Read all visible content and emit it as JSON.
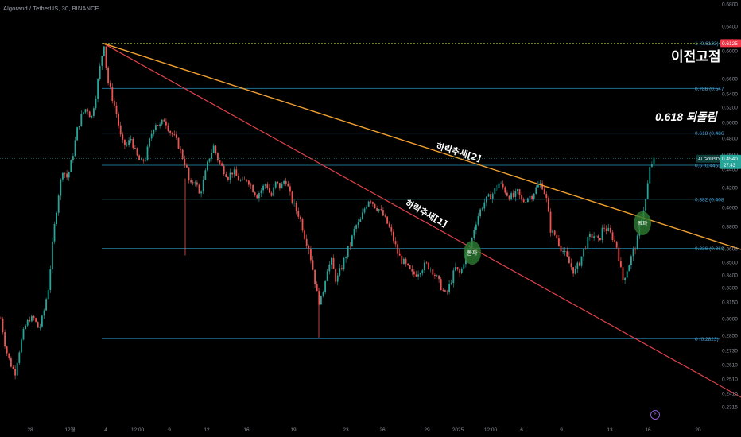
{
  "header": {
    "title": "Algorand / TetherUS, 30, BINANCE"
  },
  "annotations": {
    "previous_high": "이전고점",
    "retracement": "0.618 되돌림",
    "downtrend_1": "하락추세[1]",
    "downtrend_2": "하락추세[2]",
    "breakout": "돌파"
  },
  "price_tags": {
    "high_value": "0.6125",
    "symbol": "ALGOUSDT",
    "current_value": "0.4540",
    "countdown": "27:43"
  },
  "fib_levels": [
    {
      "ratio": 1,
      "label": "1 (0.6123)",
      "price": 0.6123
    },
    {
      "ratio": 0.786,
      "label": "0.786 (0.547",
      "price": 0.547
    },
    {
      "ratio": 0.618,
      "label": "0.618 (0.486",
      "price": 0.4864
    },
    {
      "ratio": 0.5,
      "label": "0.5 (0.4453)",
      "price": 0.4453
    },
    {
      "ratio": 0.382,
      "label": "0.382 (0.408",
      "price": 0.4082
    },
    {
      "ratio": 0.236,
      "label": "0.236 (0.360",
      "price": 0.3603
    },
    {
      "ratio": 0,
      "label": "0 (0.2823)",
      "price": 0.2823
    }
  ],
  "colors": {
    "background": "#000000",
    "up": "#26a69a",
    "down": "#ef5350",
    "fib": "#1e6f8f",
    "trend1": "#e0434a",
    "trend2": "#f0a030",
    "high_line": "#7fae3f",
    "breakout_circle": "#2e7d32"
  },
  "chart_data": {
    "type": "candlestick",
    "y_ticks": [
      "0.6800",
      "0.6400",
      "0.6000",
      "0.5600",
      "0.5400",
      "0.5200",
      "0.5000",
      "0.4800",
      "0.4600",
      "0.4400",
      "0.4200",
      "0.4000",
      "0.3800",
      "0.3600",
      "0.3500",
      "0.3400",
      "0.3300",
      "0.3150",
      "0.3000",
      "0.2850",
      "0.2730",
      "0.2610",
      "0.2510",
      "0.2410",
      "0.2315"
    ],
    "x_ticks": [
      "28",
      "12월",
      "4",
      "12:00",
      "9",
      "12",
      "16",
      "19",
      "23",
      "26",
      "29",
      "2025",
      "12:00",
      "6",
      "9",
      "13",
      "16",
      "20"
    ],
    "ylim": [
      0.2315,
      0.68
    ],
    "path": [
      [
        0,
        0.3
      ],
      [
        6,
        0.275
      ],
      [
        12,
        0.262
      ],
      [
        18,
        0.255
      ],
      [
        24,
        0.275
      ],
      [
        30,
        0.292
      ],
      [
        36,
        0.3
      ],
      [
        42,
        0.3
      ],
      [
        48,
        0.29
      ],
      [
        54,
        0.305
      ],
      [
        60,
        0.33
      ],
      [
        66,
        0.37
      ],
      [
        72,
        0.41
      ],
      [
        78,
        0.44
      ],
      [
        84,
        0.43
      ],
      [
        90,
        0.455
      ],
      [
        96,
        0.49
      ],
      [
        102,
        0.51
      ],
      [
        108,
        0.52
      ],
      [
        114,
        0.505
      ],
      [
        120,
        0.54
      ],
      [
        126,
        0.585
      ],
      [
        130,
        0.612
      ],
      [
        134,
        0.56
      ],
      [
        140,
        0.535
      ],
      [
        146,
        0.51
      ],
      [
        152,
        0.475
      ],
      [
        158,
        0.47
      ],
      [
        164,
        0.48
      ],
      [
        170,
        0.46
      ],
      [
        176,
        0.448
      ],
      [
        182,
        0.455
      ],
      [
        188,
        0.48
      ],
      [
        194,
        0.5
      ],
      [
        200,
        0.495
      ],
      [
        206,
        0.505
      ],
      [
        212,
        0.49
      ],
      [
        218,
        0.482
      ],
      [
        224,
        0.47
      ],
      [
        230,
        0.452
      ],
      [
        234,
        0.44
      ],
      [
        238,
        0.42
      ],
      [
        244,
        0.43
      ],
      [
        250,
        0.412
      ],
      [
        256,
        0.43
      ],
      [
        262,
        0.455
      ],
      [
        268,
        0.47
      ],
      [
        274,
        0.45
      ],
      [
        280,
        0.44
      ],
      [
        286,
        0.432
      ],
      [
        292,
        0.438
      ],
      [
        298,
        0.43
      ],
      [
        304,
        0.425
      ],
      [
        310,
        0.43
      ],
      [
        316,
        0.42
      ],
      [
        322,
        0.412
      ],
      [
        328,
        0.418
      ],
      [
        334,
        0.425
      ],
      [
        340,
        0.41
      ],
      [
        346,
        0.425
      ],
      [
        352,
        0.42
      ],
      [
        358,
        0.43
      ],
      [
        364,
        0.412
      ],
      [
        370,
        0.4
      ],
      [
        376,
        0.39
      ],
      [
        382,
        0.372
      ],
      [
        388,
        0.36
      ],
      [
        394,
        0.34
      ],
      [
        400,
        0.315
      ],
      [
        404,
        0.32
      ],
      [
        410,
        0.345
      ],
      [
        416,
        0.35
      ],
      [
        422,
        0.335
      ],
      [
        428,
        0.345
      ],
      [
        434,
        0.355
      ],
      [
        440,
        0.365
      ],
      [
        446,
        0.38
      ],
      [
        452,
        0.385
      ],
      [
        458,
        0.4
      ],
      [
        464,
        0.41
      ],
      [
        470,
        0.402
      ],
      [
        476,
        0.398
      ],
      [
        482,
        0.39
      ],
      [
        488,
        0.38
      ],
      [
        494,
        0.368
      ],
      [
        500,
        0.355
      ],
      [
        506,
        0.35
      ],
      [
        512,
        0.345
      ],
      [
        518,
        0.34
      ],
      [
        524,
        0.342
      ],
      [
        530,
        0.346
      ],
      [
        536,
        0.348
      ],
      [
        542,
        0.345
      ],
      [
        548,
        0.338
      ],
      [
        554,
        0.33
      ],
      [
        560,
        0.322
      ],
      [
        566,
        0.335
      ],
      [
        572,
        0.345
      ],
      [
        578,
        0.34
      ],
      [
        584,
        0.355
      ],
      [
        590,
        0.36
      ],
      [
        596,
        0.38
      ],
      [
        602,
        0.395
      ],
      [
        608,
        0.405
      ],
      [
        614,
        0.41
      ],
      [
        620,
        0.415
      ],
      [
        626,
        0.425
      ],
      [
        632,
        0.42
      ],
      [
        638,
        0.412
      ],
      [
        644,
        0.41
      ],
      [
        650,
        0.415
      ],
      [
        656,
        0.405
      ],
      [
        662,
        0.41
      ],
      [
        668,
        0.412
      ],
      [
        674,
        0.42
      ],
      [
        680,
        0.425
      ],
      [
        686,
        0.41
      ],
      [
        692,
        0.375
      ],
      [
        698,
        0.372
      ],
      [
        704,
        0.362
      ],
      [
        710,
        0.355
      ],
      [
        716,
        0.348
      ],
      [
        722,
        0.342
      ],
      [
        728,
        0.35
      ],
      [
        734,
        0.36
      ],
      [
        740,
        0.37
      ],
      [
        746,
        0.372
      ],
      [
        752,
        0.366
      ],
      [
        758,
        0.38
      ],
      [
        764,
        0.376
      ],
      [
        770,
        0.37
      ],
      [
        776,
        0.36
      ],
      [
        782,
        0.335
      ],
      [
        788,
        0.345
      ],
      [
        794,
        0.355
      ],
      [
        800,
        0.365
      ],
      [
        806,
        0.39
      ],
      [
        812,
        0.41
      ],
      [
        816,
        0.44
      ],
      [
        820,
        0.45
      ],
      [
        824,
        0.454
      ]
    ]
  }
}
